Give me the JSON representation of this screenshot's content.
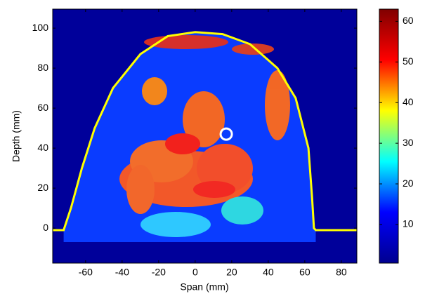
{
  "chart_data": {
    "type": "heatmap",
    "xlabel": "Span (mm)",
    "ylabel": "Depth (mm)",
    "xlim": [
      -78,
      88.5
    ],
    "xticks": [
      -60,
      -40,
      -20,
      0,
      20,
      40,
      60,
      80
    ],
    "ylim": [
      -17.5,
      109.5
    ],
    "yticks": [
      0,
      20,
      40,
      60,
      80,
      100
    ],
    "background_color": "#00009a",
    "region_color": "#0a3cff",
    "colorbar": {
      "lim": [
        0.5,
        63
      ],
      "ticks": [
        10,
        20,
        30,
        40,
        50,
        60
      ],
      "colormap": [
        "#00008f",
        "#0000ff",
        "#00ffff",
        "#ffff00",
        "#ff0000",
        "#800000"
      ]
    },
    "outline": {
      "color": "#ffff00",
      "x": [
        -78,
        -72,
        -68,
        -62,
        -55,
        -45,
        -30,
        -15,
        0,
        15,
        30,
        45,
        55,
        62,
        64,
        65,
        66,
        88.5
      ],
      "y": [
        -1,
        -1,
        10,
        30,
        50,
        70,
        87,
        96,
        98,
        97,
        92,
        80,
        65,
        40,
        15,
        0,
        -1,
        -1
      ]
    },
    "marker": {
      "x": 17,
      "y": 47,
      "color": "#ffffff"
    }
  }
}
